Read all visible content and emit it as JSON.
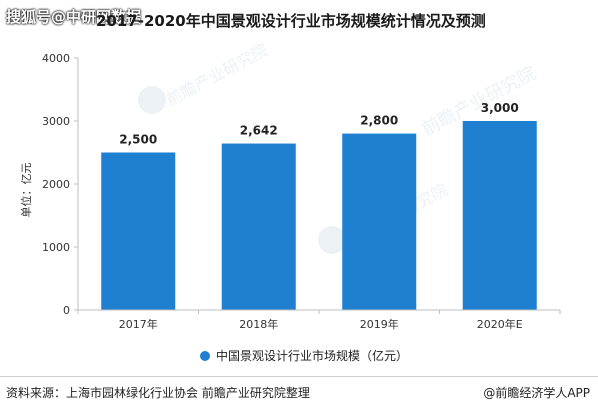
{
  "watermark_top": "搜狐号@中研网数据",
  "title": "2017-2020年中国景观设计行业市场规模统计情况及预测",
  "watermark_brand": "前瞻产业研究院",
  "footer": {
    "source": "资料来源：上海市园林绿化行业协会 前瞻产业研究院整理",
    "brand": "@前瞻经济学人APP"
  },
  "colors": {
    "bar": "#1f7fd0",
    "axis": "#bfbfbf",
    "grid": "#dddddd"
  },
  "chart_data": {
    "type": "bar",
    "title": "2017-2020年中国景观设计行业市场规模统计情况及预测",
    "categories": [
      "2017年",
      "2018年",
      "2019年",
      "2020年E"
    ],
    "series": [
      {
        "name": "中国景观设计行业市场规模（亿元）",
        "values": [
          2500,
          2642,
          2800,
          3000
        ]
      }
    ],
    "data_labels": [
      "2,500",
      "2,642",
      "2,800",
      "3,000"
    ],
    "yticks": [
      "0",
      "1000",
      "2000",
      "3000",
      "4000"
    ],
    "ylabel": "单位：亿元",
    "xlabel": "",
    "ylim": [
      0,
      4000
    ],
    "grid": false,
    "legend_position": "bottom"
  }
}
